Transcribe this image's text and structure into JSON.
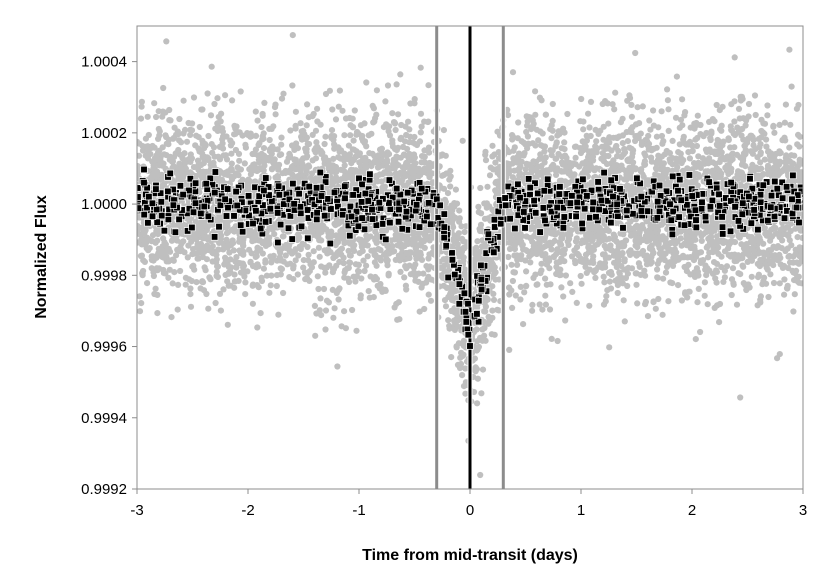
{
  "chart_data": {
    "type": "scatter",
    "title": "",
    "xlabel": "Time from mid-transit (days)",
    "ylabel": "Normalized Flux",
    "xlim": [
      -3,
      3
    ],
    "ylim": [
      0.9992,
      1.0005
    ],
    "x_ticks": [
      -3,
      -2,
      -1,
      0,
      1,
      2,
      3
    ],
    "x_tick_labels": [
      "-3",
      "-2",
      "-1",
      "0",
      "1",
      "2",
      "3"
    ],
    "y_ticks": [
      0.9992,
      0.9994,
      0.9996,
      0.9998,
      1.0,
      1.0002,
      1.0004
    ],
    "y_tick_labels": [
      "0.9992",
      "0.9994",
      "0.9996",
      "0.9998",
      "1.0000",
      "1.0002",
      "1.0004"
    ],
    "grid": false,
    "legend": "none",
    "transit_model": {
      "baseline_flux": 1.0,
      "depth": 0.00034,
      "half_duration_days": 0.3
    },
    "vertical_markers": [
      {
        "x": -0.3,
        "color": "#8c8c8c"
      },
      {
        "x": 0.0,
        "color": "#000000"
      },
      {
        "x": 0.3,
        "color": "#8c8c8c"
      }
    ],
    "series": [
      {
        "marker": "circle",
        "color": "#bfbfbf",
        "x_range": [
          -3,
          3
        ],
        "scatter_sigma": 0.00012,
        "count": 6500
      },
      {
        "marker": "square",
        "color": "#000000",
        "x_range": [
          -3,
          3
        ],
        "scatter_sigma": 3.5e-05,
        "count": 1050
      }
    ]
  }
}
